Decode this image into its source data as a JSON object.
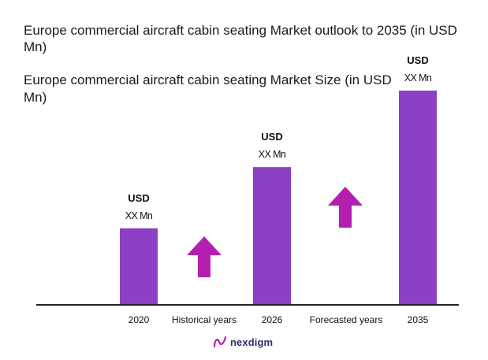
{
  "header": {
    "title": "Europe commercial aircraft cabin seating Market outlook to 2035 (in USD Mn)",
    "subtitle": "Europe commercial aircraft cabin seating Market Size (in USD Mn)"
  },
  "chart_data": {
    "type": "bar",
    "categories": [
      "2020",
      "2026",
      "2035"
    ],
    "values": [
      100,
      180,
      280
    ],
    "value_labels": [
      {
        "line1": "USD",
        "line2": "XX Mn"
      },
      {
        "line1": "USD",
        "line2": "XX Mn"
      },
      {
        "line1": "USD",
        "line2": "XX Mn"
      }
    ],
    "period_labels": [
      "Historical years",
      "Forecasted years"
    ],
    "bar_color": "#8a3fc4",
    "arrow_color": "#b51fb0",
    "axis_color": "#222222",
    "grid": false
  },
  "brand": {
    "name": "nexdigm",
    "icon": "nexdigm-logo-icon"
  }
}
